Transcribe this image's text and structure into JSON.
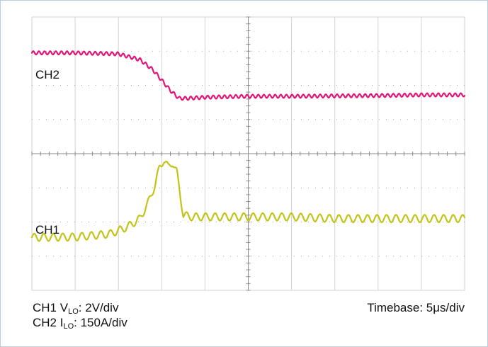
{
  "chart_data": {
    "type": "line",
    "grid": true,
    "divisions": {
      "x": 10,
      "y": 8
    },
    "xlim": [
      0,
      10
    ],
    "ylim": [
      0,
      8
    ],
    "series": [
      {
        "name": "CH2",
        "color": "#e0157a",
        "x": [
          0,
          1.0,
          2.0,
          2.5,
          2.8,
          3.0,
          3.2,
          3.4,
          3.6,
          4.0,
          5.0,
          6.0,
          7.0,
          8.0,
          9.0,
          10.0
        ],
        "y": [
          6.95,
          6.95,
          6.92,
          6.75,
          6.45,
          6.15,
          5.85,
          5.62,
          5.62,
          5.65,
          5.68,
          5.68,
          5.69,
          5.7,
          5.72,
          5.72
        ],
        "ripple": 0.05,
        "ripple_period": 0.13
      },
      {
        "name": "CH1",
        "color": "#c2c418",
        "x": [
          0,
          1.0,
          1.8,
          2.2,
          2.5,
          2.7,
          2.85,
          2.95,
          3.05,
          3.15,
          3.25,
          3.35,
          3.5,
          3.7,
          4.0,
          5.0,
          6.0,
          7.0,
          8.0,
          9.0,
          10.0
        ],
        "y": [
          1.55,
          1.56,
          1.65,
          1.85,
          2.1,
          2.6,
          3.1,
          3.6,
          3.82,
          3.6,
          3.75,
          3.45,
          2.2,
          2.15,
          2.15,
          2.15,
          2.15,
          2.1,
          2.1,
          2.1,
          2.1
        ],
        "ripple": 0.11,
        "ripple_period": 0.22
      }
    ],
    "trace_labels": [
      "CH2",
      "CH1"
    ],
    "annotations": {
      "ch1": {
        "prefix": "CH1 V",
        "sub": "LO",
        "suffix": ": 2V/div"
      },
      "ch2": {
        "prefix": "CH2 I",
        "sub": "LO",
        "suffix": ": 150A/div"
      },
      "timebase": "Timebase: 5μs/div"
    }
  },
  "colors": {
    "grid": "#d2d2d2",
    "grid_dots": "#a8a8a8",
    "axis_ticks": "#8a8a8a",
    "frame": "#b9cfe0"
  }
}
